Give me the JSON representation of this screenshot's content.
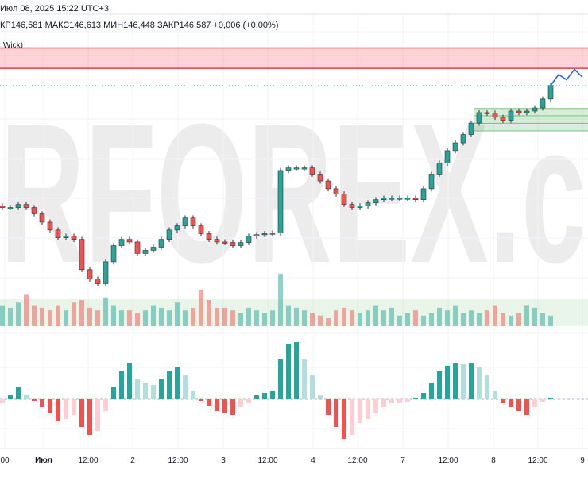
{
  "header": {
    "datetime": "Июл 08, 2025 15:22 UTC+3",
    "ohlc": "КР146,581  МАКС146,613  МИН146,448  ЗАКР146,587  +0,006 (+0,00%)",
    "indicator_label": "Wick)"
  },
  "watermark": "RFOREX.c",
  "chart_data": {
    "type": "candlestick",
    "x_tick_labels": [
      "00",
      "Июл",
      "12:00",
      "2",
      "12:00",
      "3",
      "12:00",
      "4",
      "12:00",
      "7",
      "12:00",
      "8",
      "12:00",
      "9"
    ],
    "ylim": [
      142.6,
      148.23
    ],
    "last_price": 146.587,
    "closes": [
      144.25,
      144.25,
      144.31,
      144.25,
      144.13,
      143.97,
      143.82,
      143.67,
      143.7,
      143.64,
      143.06,
      142.88,
      142.79,
      143.21,
      143.52,
      143.64,
      143.59,
      143.37,
      143.43,
      143.49,
      143.64,
      143.82,
      143.9,
      144.05,
      143.9,
      143.75,
      143.64,
      143.59,
      143.58,
      143.52,
      143.58,
      143.7,
      143.73,
      143.75,
      143.76,
      144.96,
      145.01,
      145.01,
      145.01,
      144.89,
      144.76,
      144.61,
      144.51,
      144.31,
      144.25,
      144.28,
      144.34,
      144.4,
      144.43,
      144.43,
      144.43,
      144.43,
      144.4,
      144.61,
      144.89,
      145.1,
      145.34,
      145.49,
      145.65,
      145.87,
      146.07,
      146.06,
      145.98,
      145.92,
      146.1,
      146.07,
      146.1,
      146.16,
      146.33,
      146.59
    ],
    "forecast": [
      146.59,
      146.8,
      146.7,
      146.9,
      146.75
    ],
    "resistance_zone": [
      146.92,
      147.31
    ],
    "support_zone": [
      145.72,
      146.15
    ],
    "volume": [
      40,
      35,
      45,
      60,
      40,
      35,
      30,
      40,
      30,
      45,
      50,
      35,
      30,
      55,
      40,
      30,
      30,
      25,
      30,
      40,
      35,
      30,
      45,
      30,
      35,
      70,
      50,
      35,
      35,
      30,
      25,
      35,
      30,
      25,
      30,
      100,
      40,
      35,
      30,
      25,
      20,
      15,
      30,
      35,
      30,
      25,
      30,
      40,
      30,
      35,
      20,
      25,
      30,
      20,
      25,
      35,
      30,
      40,
      25,
      30,
      25,
      30,
      40,
      25,
      20,
      25,
      40,
      35,
      25,
      20
    ],
    "oscillator": [
      -5,
      5,
      15,
      5,
      -2,
      -10,
      -18,
      -28,
      -25,
      -20,
      -35,
      -45,
      -40,
      -15,
      15,
      35,
      45,
      25,
      20,
      18,
      25,
      35,
      40,
      30,
      10,
      -2,
      -8,
      -15,
      -18,
      -20,
      -10,
      -5,
      5,
      8,
      10,
      50,
      70,
      72,
      50,
      30,
      5,
      -20,
      -35,
      -50,
      -45,
      -30,
      -25,
      -18,
      -10,
      -5,
      -5,
      -3,
      2,
      8,
      20,
      35,
      42,
      45,
      44,
      45,
      40,
      30,
      10,
      -5,
      -10,
      -15,
      -20,
      -10,
      -3,
      2
    ],
    "colors": {
      "up": "#26a69a",
      "down": "#ef5350",
      "up_light": "#b2dfdb",
      "down_light": "#ffcdd2",
      "forecast": "#2962ff",
      "resistance": "#f23645",
      "support": "#4caf50"
    }
  }
}
